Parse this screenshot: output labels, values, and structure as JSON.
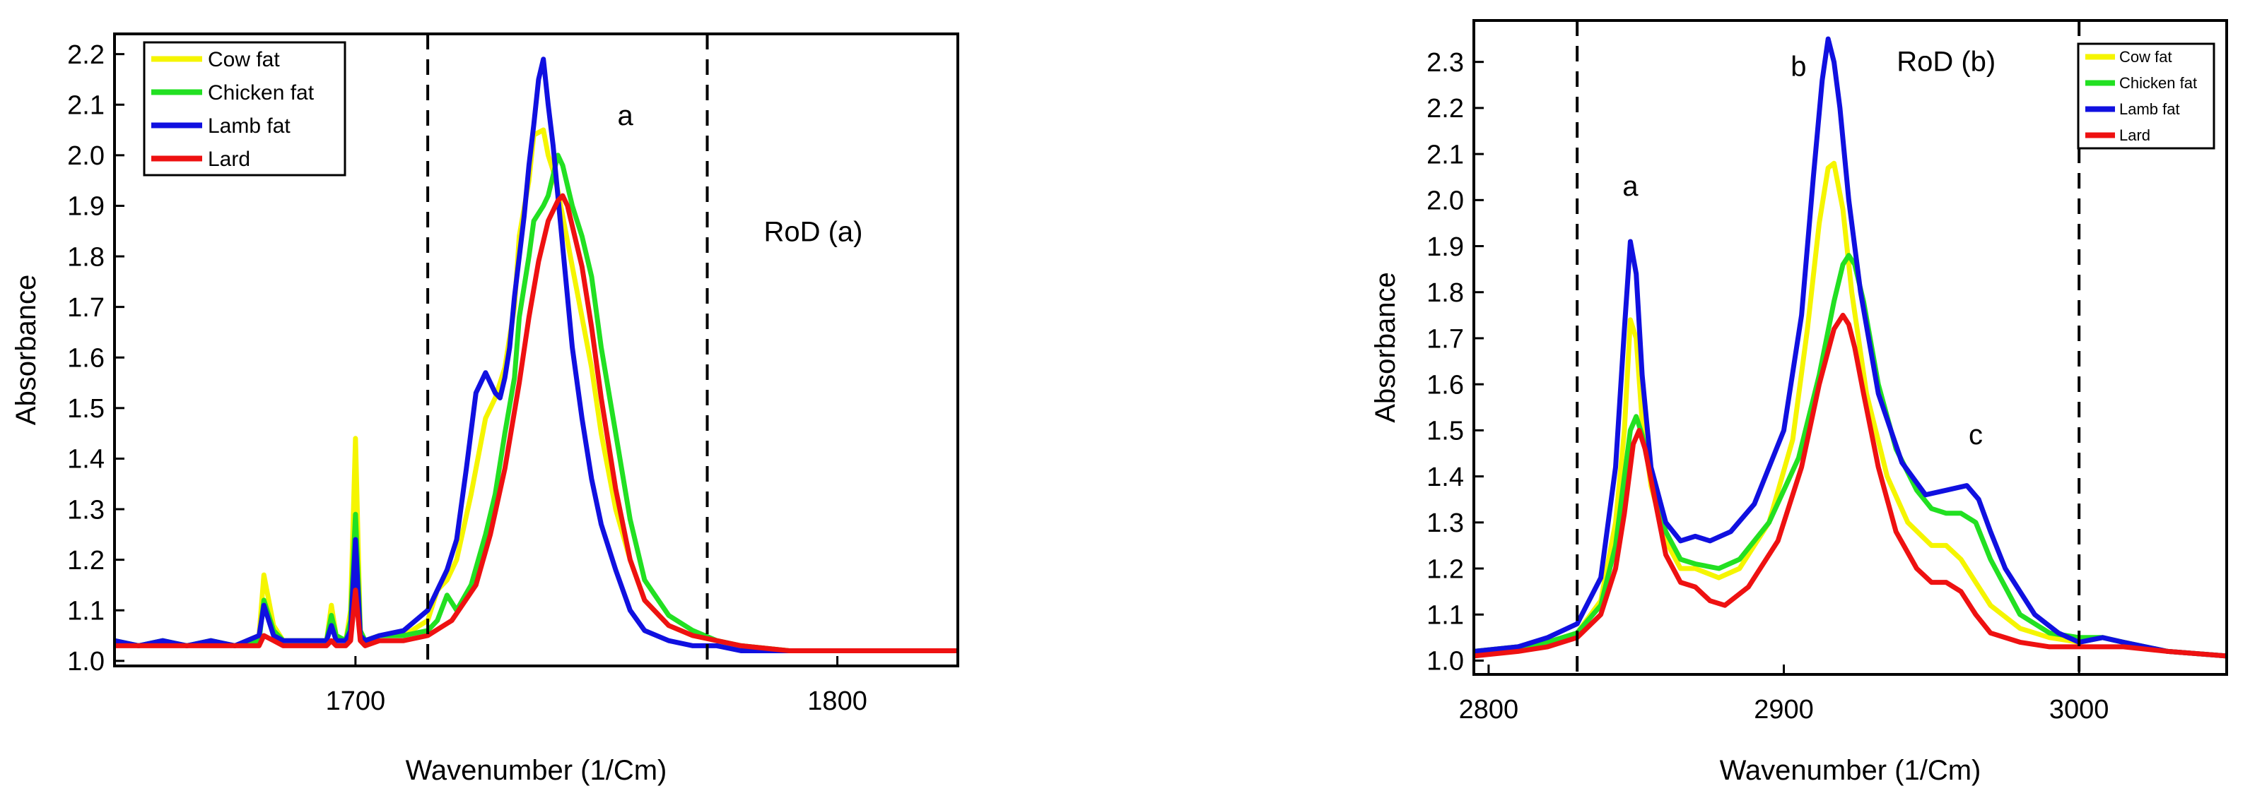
{
  "chart_data": [
    {
      "type": "line",
      "title": "",
      "xlabel": "Wavenumber (1/Cm)",
      "ylabel": "Absorbance",
      "xlim": [
        1650,
        1825
      ],
      "ylim": [
        0.99,
        2.24
      ],
      "xticks": [
        1700,
        1800
      ],
      "yticks": [
        1.0,
        1.1,
        1.2,
        1.3,
        1.4,
        1.5,
        1.6,
        1.7,
        1.8,
        1.9,
        2.0,
        2.1,
        2.2
      ],
      "ytick_labels": [
        "1.0",
        "1.1",
        "1.2",
        "1.3",
        "1.4",
        "1.5",
        "1.6",
        "1.7",
        "1.8",
        "1.9",
        "2.0",
        "2.1",
        "2.2"
      ],
      "grid": false,
      "legend_position": "top-left",
      "vlines": [
        1715,
        1773
      ],
      "annotations": [
        {
          "text": "a",
          "x": 1756,
          "y": 2.06
        },
        {
          "text": "RoD (a)",
          "x": 1795,
          "y": 1.83
        }
      ],
      "series": [
        {
          "name": "Cow fat",
          "color": "#f5f500",
          "x": [
            1650,
            1655,
            1660,
            1665,
            1670,
            1675,
            1680,
            1681,
            1683,
            1685,
            1690,
            1694,
            1695,
            1696,
            1698,
            1699,
            1700,
            1701,
            1702,
            1705,
            1710,
            1715,
            1717,
            1719,
            1721,
            1724,
            1727,
            1729,
            1731,
            1733,
            1734,
            1736,
            1737,
            1739,
            1740,
            1741,
            1742,
            1743,
            1744,
            1745,
            1747,
            1749,
            1751,
            1754,
            1757,
            1760,
            1765,
            1770,
            1775,
            1780,
            1790,
            1800,
            1810,
            1825
          ],
          "y": [
            1.04,
            1.03,
            1.04,
            1.03,
            1.04,
            1.03,
            1.05,
            1.17,
            1.07,
            1.04,
            1.04,
            1.04,
            1.11,
            1.05,
            1.04,
            1.1,
            1.44,
            1.06,
            1.04,
            1.05,
            1.05,
            1.08,
            1.14,
            1.16,
            1.2,
            1.33,
            1.48,
            1.52,
            1.58,
            1.7,
            1.84,
            1.95,
            2.04,
            2.05,
            2.0,
            1.97,
            1.93,
            1.88,
            1.83,
            1.78,
            1.68,
            1.58,
            1.45,
            1.3,
            1.2,
            1.12,
            1.07,
            1.05,
            1.04,
            1.03,
            1.02,
            1.02,
            1.02,
            1.02
          ]
        },
        {
          "name": "Chicken fat",
          "color": "#22e022",
          "x": [
            1650,
            1655,
            1660,
            1665,
            1670,
            1675,
            1680,
            1681,
            1683,
            1685,
            1690,
            1694,
            1695,
            1696,
            1698,
            1699,
            1700,
            1701,
            1702,
            1705,
            1710,
            1715,
            1717,
            1719,
            1721,
            1724,
            1727,
            1729,
            1731,
            1733,
            1734,
            1736,
            1737,
            1739,
            1740,
            1741,
            1742,
            1743,
            1744,
            1745,
            1747,
            1749,
            1751,
            1754,
            1757,
            1760,
            1765,
            1770,
            1775,
            1780,
            1790,
            1800,
            1810,
            1825
          ],
          "y": [
            1.04,
            1.03,
            1.04,
            1.03,
            1.04,
            1.03,
            1.04,
            1.12,
            1.06,
            1.04,
            1.04,
            1.04,
            1.09,
            1.05,
            1.04,
            1.08,
            1.29,
            1.06,
            1.04,
            1.05,
            1.05,
            1.06,
            1.08,
            1.13,
            1.1,
            1.15,
            1.25,
            1.33,
            1.45,
            1.56,
            1.68,
            1.8,
            1.87,
            1.9,
            1.92,
            1.96,
            2.0,
            1.98,
            1.94,
            1.9,
            1.84,
            1.76,
            1.62,
            1.45,
            1.28,
            1.16,
            1.09,
            1.06,
            1.04,
            1.03,
            1.02,
            1.02,
            1.02,
            1.02
          ]
        },
        {
          "name": "Lamb fat",
          "color": "#1010e0",
          "x": [
            1650,
            1655,
            1660,
            1665,
            1670,
            1675,
            1680,
            1681,
            1683,
            1685,
            1690,
            1694,
            1695,
            1696,
            1698,
            1699,
            1700,
            1701,
            1702,
            1705,
            1710,
            1715,
            1717,
            1719,
            1721,
            1723,
            1725,
            1727,
            1728,
            1729,
            1730,
            1731,
            1732,
            1733,
            1735,
            1736,
            1737,
            1738,
            1739,
            1740,
            1741,
            1742,
            1743,
            1744,
            1745,
            1747,
            1749,
            1751,
            1754,
            1757,
            1760,
            1765,
            1770,
            1775,
            1780,
            1790,
            1800,
            1810,
            1825
          ],
          "y": [
            1.04,
            1.03,
            1.04,
            1.03,
            1.04,
            1.03,
            1.05,
            1.11,
            1.05,
            1.04,
            1.04,
            1.04,
            1.07,
            1.04,
            1.04,
            1.06,
            1.24,
            1.05,
            1.04,
            1.05,
            1.06,
            1.1,
            1.14,
            1.18,
            1.24,
            1.38,
            1.53,
            1.57,
            1.55,
            1.53,
            1.52,
            1.56,
            1.62,
            1.72,
            1.88,
            1.98,
            2.06,
            2.15,
            2.19,
            2.1,
            2.02,
            1.92,
            1.82,
            1.72,
            1.62,
            1.48,
            1.36,
            1.27,
            1.18,
            1.1,
            1.06,
            1.04,
            1.03,
            1.03,
            1.02,
            1.02,
            1.02,
            1.02,
            1.02
          ]
        },
        {
          "name": "Lard",
          "color": "#ee1111",
          "x": [
            1650,
            1655,
            1660,
            1665,
            1670,
            1675,
            1680,
            1681,
            1683,
            1685,
            1690,
            1694,
            1695,
            1696,
            1698,
            1699,
            1700,
            1701,
            1702,
            1705,
            1710,
            1715,
            1720,
            1725,
            1728,
            1731,
            1734,
            1736,
            1738,
            1740,
            1742,
            1743,
            1744,
            1745,
            1747,
            1749,
            1751,
            1754,
            1757,
            1760,
            1765,
            1770,
            1775,
            1780,
            1790,
            1800,
            1810,
            1825
          ],
          "y": [
            1.03,
            1.03,
            1.03,
            1.03,
            1.03,
            1.03,
            1.03,
            1.05,
            1.04,
            1.03,
            1.03,
            1.03,
            1.04,
            1.03,
            1.03,
            1.04,
            1.14,
            1.04,
            1.03,
            1.04,
            1.04,
            1.05,
            1.08,
            1.15,
            1.25,
            1.38,
            1.55,
            1.68,
            1.79,
            1.87,
            1.91,
            1.92,
            1.9,
            1.86,
            1.78,
            1.66,
            1.52,
            1.34,
            1.2,
            1.12,
            1.07,
            1.05,
            1.04,
            1.03,
            1.02,
            1.02,
            1.02,
            1.02
          ]
        }
      ]
    },
    {
      "type": "line",
      "title": "",
      "xlabel": "Wavenumber (1/Cm)",
      "ylabel": "Absorbance",
      "xlim": [
        2795,
        3050
      ],
      "ylim": [
        0.97,
        2.39
      ],
      "xticks": [
        2800,
        2900,
        3000
      ],
      "yticks": [
        1.0,
        1.1,
        1.2,
        1.3,
        1.4,
        1.5,
        1.6,
        1.7,
        1.8,
        1.9,
        2.0,
        2.1,
        2.2,
        2.3
      ],
      "ytick_labels": [
        "1.0",
        "1.1",
        "1.2",
        "1.3",
        "1.4",
        "1.5",
        "1.6",
        "1.7",
        "1.8",
        "1.9",
        "2.0",
        "2.1",
        "2.2",
        "2.3"
      ],
      "grid": false,
      "legend_position": "top-right",
      "vlines": [
        2830,
        3000
      ],
      "annotations": [
        {
          "text": "a",
          "x": 2848,
          "y": 2.01
        },
        {
          "text": "b",
          "x": 2905,
          "y": 2.27
        },
        {
          "text": "c",
          "x": 2965,
          "y": 1.47
        },
        {
          "text": "RoD (b)",
          "x": 2955,
          "y": 2.28
        }
      ],
      "series": [
        {
          "name": "Cow fat",
          "color": "#f5f500",
          "x": [
            2795,
            2810,
            2820,
            2830,
            2838,
            2843,
            2846,
            2848,
            2850,
            2852,
            2855,
            2860,
            2865,
            2870,
            2878,
            2885,
            2895,
            2903,
            2908,
            2912,
            2915,
            2917,
            2920,
            2923,
            2928,
            2935,
            2942,
            2950,
            2955,
            2960,
            2965,
            2970,
            2980,
            2990,
            3000,
            3008,
            3015,
            3030,
            3050
          ],
          "y": [
            1.02,
            1.03,
            1.04,
            1.06,
            1.13,
            1.3,
            1.5,
            1.74,
            1.7,
            1.52,
            1.38,
            1.26,
            1.2,
            1.2,
            1.18,
            1.2,
            1.3,
            1.48,
            1.72,
            1.95,
            2.07,
            2.08,
            1.98,
            1.8,
            1.58,
            1.4,
            1.3,
            1.25,
            1.25,
            1.22,
            1.17,
            1.12,
            1.07,
            1.05,
            1.04,
            1.05,
            1.04,
            1.02,
            1.01
          ]
        },
        {
          "name": "Chicken fat",
          "color": "#22e022",
          "x": [
            2795,
            2810,
            2820,
            2830,
            2838,
            2843,
            2846,
            2848,
            2850,
            2852,
            2855,
            2860,
            2865,
            2870,
            2878,
            2885,
            2895,
            2905,
            2912,
            2917,
            2920,
            2922,
            2924,
            2927,
            2932,
            2938,
            2945,
            2950,
            2955,
            2960,
            2965,
            2970,
            2980,
            2990,
            3000,
            3008,
            3015,
            3030,
            3050
          ],
          "y": [
            1.02,
            1.03,
            1.04,
            1.06,
            1.12,
            1.25,
            1.4,
            1.5,
            1.53,
            1.49,
            1.4,
            1.28,
            1.22,
            1.21,
            1.2,
            1.22,
            1.3,
            1.44,
            1.62,
            1.78,
            1.86,
            1.88,
            1.86,
            1.78,
            1.6,
            1.46,
            1.37,
            1.33,
            1.32,
            1.32,
            1.3,
            1.22,
            1.1,
            1.06,
            1.05,
            1.05,
            1.04,
            1.02,
            1.01
          ]
        },
        {
          "name": "Lamb fat",
          "color": "#1010e0",
          "x": [
            2795,
            2810,
            2820,
            2830,
            2838,
            2843,
            2846,
            2848,
            2850,
            2852,
            2855,
            2860,
            2865,
            2870,
            2875,
            2882,
            2890,
            2900,
            2906,
            2910,
            2913,
            2915,
            2917,
            2919,
            2922,
            2926,
            2932,
            2940,
            2948,
            2955,
            2962,
            2966,
            2970,
            2975,
            2985,
            2993,
            3000,
            3008,
            3015,
            3030,
            3050
          ],
          "y": [
            1.02,
            1.03,
            1.05,
            1.08,
            1.18,
            1.42,
            1.72,
            1.91,
            1.84,
            1.62,
            1.42,
            1.3,
            1.26,
            1.27,
            1.26,
            1.28,
            1.34,
            1.5,
            1.75,
            2.05,
            2.26,
            2.35,
            2.3,
            2.2,
            2.0,
            1.8,
            1.58,
            1.43,
            1.36,
            1.37,
            1.38,
            1.35,
            1.28,
            1.2,
            1.1,
            1.06,
            1.04,
            1.05,
            1.04,
            1.02,
            1.01
          ]
        },
        {
          "name": "Lard",
          "color": "#ee1111",
          "x": [
            2795,
            2810,
            2820,
            2830,
            2838,
            2843,
            2846,
            2849,
            2851,
            2853,
            2856,
            2860,
            2865,
            2870,
            2875,
            2880,
            2888,
            2898,
            2906,
            2912,
            2917,
            2920,
            2922,
            2924,
            2927,
            2932,
            2938,
            2945,
            2950,
            2955,
            2960,
            2965,
            2970,
            2980,
            2990,
            3000,
            3008,
            3015,
            3030,
            3050
          ],
          "y": [
            1.01,
            1.02,
            1.03,
            1.05,
            1.1,
            1.2,
            1.32,
            1.47,
            1.5,
            1.46,
            1.36,
            1.23,
            1.17,
            1.16,
            1.13,
            1.12,
            1.16,
            1.26,
            1.42,
            1.6,
            1.72,
            1.75,
            1.73,
            1.68,
            1.58,
            1.42,
            1.28,
            1.2,
            1.17,
            1.17,
            1.15,
            1.1,
            1.06,
            1.04,
            1.03,
            1.03,
            1.03,
            1.03,
            1.02,
            1.01
          ]
        }
      ]
    }
  ]
}
